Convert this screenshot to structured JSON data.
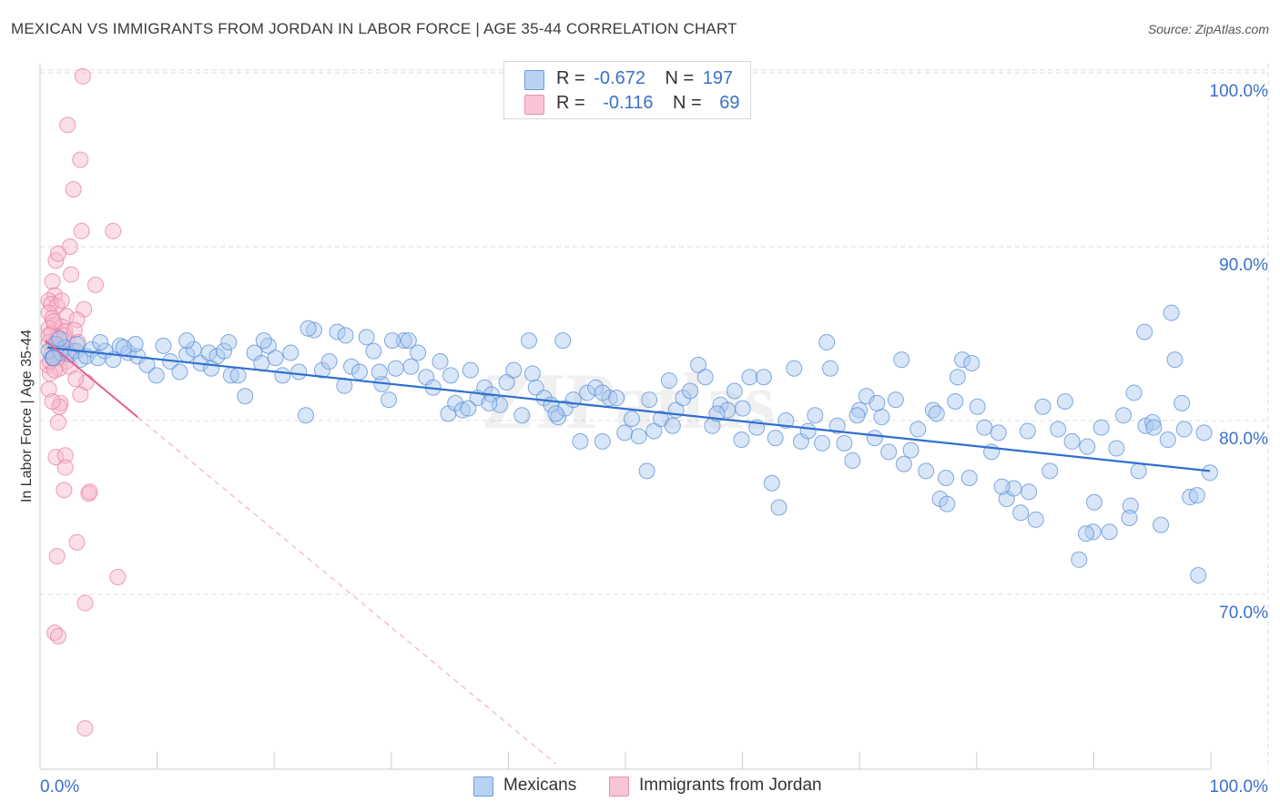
{
  "header": {
    "title": "MEXICAN VS IMMIGRANTS FROM JORDAN IN LABOR FORCE | AGE 35-44 CORRELATION CHART",
    "source": "Source: ZipAtlas.com"
  },
  "legend": {
    "rows": [
      {
        "r_label": "R =",
        "r_value": "-0.672",
        "n_label": "N =",
        "n_value": "197"
      },
      {
        "r_label": "R =",
        "r_value": "-0.116",
        "n_label": "N =",
        "n_value": "69"
      }
    ]
  },
  "watermark": "ZIPatlas",
  "colors": {
    "mexicans_fill": "#a9c8f0",
    "mexicans_stroke": "#5b8fd6",
    "mexicans_line": "#2f6fd0",
    "jordan_fill": "#f7b9cd",
    "jordan_stroke": "#e87fa2",
    "jordan_line": "#e2628f",
    "axis_label_blue": "#3b6fc9",
    "grid": "#dddddd"
  },
  "chart_data": {
    "type": "scatter",
    "title": "MEXICAN VS IMMIGRANTS FROM JORDAN IN LABOR FORCE | AGE 35-44 CORRELATION CHART",
    "xlabel": "",
    "ylabel": "In Labor Force | Age 35-44",
    "xlim": [
      0,
      100
    ],
    "ylim": [
      59,
      101.5
    ],
    "x_tick_labels": [
      "0.0%",
      "100.0%"
    ],
    "y_ticks": [
      70,
      80,
      90,
      100
    ],
    "y_tick_labels": [
      "70.0%",
      "80.0%",
      "90.0%",
      "100.0%"
    ],
    "grid": true,
    "legend_position": "bottom",
    "series": [
      {
        "name": "Mexicans",
        "color": "#a9c8f0",
        "trend": {
          "x": [
            0.5,
            100
          ],
          "y": [
            84.2,
            77.1
          ]
        },
        "points": [
          [
            0.6,
            84.0
          ],
          [
            0.9,
            83.6
          ],
          [
            1.2,
            84.4
          ],
          [
            1.6,
            83.9
          ],
          [
            2.0,
            84.2
          ],
          [
            2.4,
            83.8
          ],
          [
            2.9,
            84.0
          ],
          [
            3.3,
            83.5
          ],
          [
            3.8,
            83.7
          ],
          [
            4.3,
            84.1
          ],
          [
            4.8,
            83.6
          ],
          [
            5.4,
            84.0
          ],
          [
            6.1,
            83.5
          ],
          [
            6.7,
            84.3
          ],
          [
            7.4,
            83.9
          ],
          [
            8.2,
            83.7
          ],
          [
            9.0,
            83.2
          ],
          [
            9.8,
            82.6
          ],
          [
            10.4,
            84.3
          ],
          [
            11.0,
            83.4
          ],
          [
            11.8,
            82.8
          ],
          [
            12.4,
            83.8
          ],
          [
            13.0,
            84.1
          ],
          [
            13.6,
            83.3
          ],
          [
            14.3,
            83.9
          ],
          [
            15.0,
            83.7
          ],
          [
            15.6,
            84.0
          ],
          [
            16.2,
            82.6
          ],
          [
            16.8,
            82.6
          ],
          [
            17.4,
            81.4
          ],
          [
            18.2,
            83.9
          ],
          [
            18.8,
            83.3
          ],
          [
            19.4,
            84.3
          ],
          [
            20.0,
            83.6
          ],
          [
            20.6,
            82.6
          ],
          [
            21.3,
            83.9
          ],
          [
            22.0,
            82.8
          ],
          [
            22.6,
            80.3
          ],
          [
            23.3,
            85.2
          ],
          [
            24.0,
            82.9
          ],
          [
            24.6,
            83.4
          ],
          [
            25.3,
            85.1
          ],
          [
            25.9,
            82.0
          ],
          [
            26.5,
            83.1
          ],
          [
            27.2,
            82.8
          ],
          [
            27.8,
            84.8
          ],
          [
            28.4,
            84.0
          ],
          [
            29.1,
            82.1
          ],
          [
            29.7,
            81.2
          ],
          [
            30.3,
            83.0
          ],
          [
            31.0,
            84.6
          ],
          [
            31.6,
            83.1
          ],
          [
            32.2,
            83.9
          ],
          [
            32.9,
            82.5
          ],
          [
            33.5,
            81.9
          ],
          [
            34.1,
            83.4
          ],
          [
            34.8,
            80.4
          ],
          [
            35.4,
            81.0
          ],
          [
            36.0,
            80.6
          ],
          [
            36.7,
            82.9
          ],
          [
            37.3,
            81.3
          ],
          [
            37.9,
            81.9
          ],
          [
            38.5,
            81.5
          ],
          [
            39.2,
            80.9
          ],
          [
            39.8,
            82.2
          ],
          [
            40.4,
            82.9
          ],
          [
            41.1,
            80.3
          ],
          [
            41.7,
            84.6
          ],
          [
            42.3,
            81.9
          ],
          [
            43.0,
            81.3
          ],
          [
            43.6,
            80.9
          ],
          [
            44.2,
            80.2
          ],
          [
            44.8,
            80.7
          ],
          [
            45.5,
            81.2
          ],
          [
            46.1,
            78.8
          ],
          [
            46.7,
            81.6
          ],
          [
            47.4,
            81.9
          ],
          [
            48.0,
            78.8
          ],
          [
            48.6,
            81.3
          ],
          [
            49.2,
            81.3
          ],
          [
            49.9,
            79.3
          ],
          [
            50.5,
            80.1
          ],
          [
            51.1,
            79.1
          ],
          [
            51.8,
            77.1
          ],
          [
            52.4,
            79.4
          ],
          [
            53.0,
            80.1
          ],
          [
            53.7,
            82.3
          ],
          [
            54.3,
            80.6
          ],
          [
            54.9,
            81.3
          ],
          [
            55.5,
            81.7
          ],
          [
            56.2,
            83.2
          ],
          [
            56.8,
            82.5
          ],
          [
            57.4,
            79.7
          ],
          [
            58.1,
            80.9
          ],
          [
            58.7,
            80.6
          ],
          [
            59.3,
            81.7
          ],
          [
            59.9,
            78.9
          ],
          [
            60.6,
            82.5
          ],
          [
            61.2,
            79.6
          ],
          [
            61.8,
            82.5
          ],
          [
            62.5,
            76.4
          ],
          [
            63.1,
            75.0
          ],
          [
            63.7,
            80.0
          ],
          [
            64.4,
            83.0
          ],
          [
            65.0,
            78.8
          ],
          [
            65.6,
            79.4
          ],
          [
            66.2,
            80.3
          ],
          [
            66.8,
            78.7
          ],
          [
            67.5,
            83.0
          ],
          [
            68.1,
            79.7
          ],
          [
            68.7,
            78.7
          ],
          [
            69.4,
            77.7
          ],
          [
            70.0,
            80.6
          ],
          [
            70.6,
            81.4
          ],
          [
            71.3,
            79.0
          ],
          [
            71.9,
            80.2
          ],
          [
            72.5,
            78.2
          ],
          [
            73.1,
            81.2
          ],
          [
            73.8,
            77.5
          ],
          [
            74.4,
            78.3
          ],
          [
            75.0,
            79.5
          ],
          [
            75.7,
            77.1
          ],
          [
            76.3,
            80.6
          ],
          [
            76.9,
            75.5
          ],
          [
            77.5,
            75.2
          ],
          [
            78.2,
            81.1
          ],
          [
            78.8,
            83.5
          ],
          [
            79.4,
            76.7
          ],
          [
            80.1,
            80.8
          ],
          [
            80.7,
            79.6
          ],
          [
            81.3,
            78.2
          ],
          [
            81.9,
            79.3
          ],
          [
            82.6,
            75.5
          ],
          [
            83.2,
            76.1
          ],
          [
            83.8,
            74.7
          ],
          [
            84.5,
            75.9
          ],
          [
            85.1,
            74.3
          ],
          [
            85.7,
            80.8
          ],
          [
            86.3,
            77.1
          ],
          [
            87.0,
            79.5
          ],
          [
            87.6,
            81.1
          ],
          [
            88.2,
            78.8
          ],
          [
            88.8,
            72.0
          ],
          [
            89.5,
            78.5
          ],
          [
            90.1,
            75.3
          ],
          [
            90.7,
            79.6
          ],
          [
            91.4,
            73.6
          ],
          [
            92.0,
            78.4
          ],
          [
            92.6,
            80.3
          ],
          [
            93.2,
            75.1
          ],
          [
            93.9,
            77.1
          ],
          [
            94.5,
            79.7
          ],
          [
            95.1,
            79.9
          ],
          [
            95.8,
            74.0
          ],
          [
            96.4,
            78.9
          ],
          [
            97.0,
            83.5
          ],
          [
            97.6,
            81.0
          ],
          [
            98.3,
            75.6
          ],
          [
            98.9,
            75.7
          ],
          [
            99.5,
            79.3
          ],
          [
            100.0,
            77.0
          ],
          [
            73.6,
            83.5
          ],
          [
            31.4,
            84.6
          ],
          [
            44.6,
            84.6
          ],
          [
            44.0,
            80.4
          ],
          [
            76.6,
            80.4
          ],
          [
            84.4,
            79.4
          ],
          [
            77.4,
            76.7
          ],
          [
            90.0,
            73.6
          ],
          [
            93.5,
            81.6
          ],
          [
            95.2,
            79.6
          ],
          [
            97.8,
            79.5
          ],
          [
            99.0,
            71.1
          ],
          [
            96.7,
            86.2
          ],
          [
            94.4,
            85.1
          ],
          [
            93.1,
            74.4
          ],
          [
            89.4,
            73.5
          ],
          [
            82.2,
            76.2
          ],
          [
            79.6,
            83.3
          ],
          [
            71.5,
            81.0
          ],
          [
            67.2,
            84.5
          ],
          [
            60.0,
            80.7
          ],
          [
            54.0,
            79.7
          ],
          [
            52.0,
            81.2
          ],
          [
            48.0,
            81.6
          ],
          [
            42.0,
            82.7
          ],
          [
            38.3,
            81.0
          ],
          [
            35.0,
            82.6
          ],
          [
            30.0,
            84.6
          ],
          [
            26.0,
            84.9
          ],
          [
            22.8,
            85.3
          ],
          [
            19.0,
            84.6
          ],
          [
            16.0,
            84.5
          ],
          [
            12.4,
            84.6
          ],
          [
            8.0,
            84.4
          ],
          [
            5.0,
            84.5
          ],
          [
            3.0,
            84.4
          ],
          [
            1.5,
            84.7
          ],
          [
            1.0,
            83.6
          ],
          [
            7.0,
            84.2
          ],
          [
            14.5,
            83.0
          ],
          [
            28.9,
            82.8
          ],
          [
            36.5,
            80.7
          ],
          [
            57.8,
            80.4
          ],
          [
            62.8,
            79.0
          ],
          [
            69.8,
            80.3
          ],
          [
            78.4,
            82.5
          ]
        ]
      },
      {
        "name": "Immigrants from Jordan",
        "color": "#f7b9cd",
        "trend": {
          "x": [
            0.3,
            8.2
          ],
          "y": [
            84.6,
            80.2
          ]
        },
        "points": [
          [
            3.5,
            99.8
          ],
          [
            2.2,
            97.0
          ],
          [
            3.3,
            95.0
          ],
          [
            2.7,
            93.3
          ],
          [
            3.4,
            90.9
          ],
          [
            6.1,
            90.9
          ],
          [
            2.4,
            90.0
          ],
          [
            1.2,
            89.2
          ],
          [
            1.4,
            89.6
          ],
          [
            2.5,
            88.4
          ],
          [
            0.9,
            88.0
          ],
          [
            4.6,
            87.8
          ],
          [
            1.1,
            87.2
          ],
          [
            0.6,
            86.9
          ],
          [
            0.8,
            86.7
          ],
          [
            1.3,
            86.6
          ],
          [
            3.6,
            86.4
          ],
          [
            0.6,
            86.2
          ],
          [
            0.9,
            85.9
          ],
          [
            2.1,
            86.0
          ],
          [
            3.0,
            85.8
          ],
          [
            1.1,
            85.5
          ],
          [
            0.6,
            85.3
          ],
          [
            1.7,
            85.4
          ],
          [
            2.0,
            85.1
          ],
          [
            0.8,
            85.0
          ],
          [
            1.4,
            84.8
          ],
          [
            2.2,
            84.6
          ],
          [
            0.6,
            84.5
          ],
          [
            1.0,
            84.4
          ],
          [
            1.8,
            84.2
          ],
          [
            2.6,
            84.0
          ],
          [
            0.8,
            83.8
          ],
          [
            1.3,
            83.6
          ],
          [
            2.1,
            83.4
          ],
          [
            0.5,
            83.2
          ],
          [
            1.5,
            83.0
          ],
          [
            0.7,
            82.7
          ],
          [
            3.8,
            82.2
          ],
          [
            0.6,
            81.8
          ],
          [
            3.3,
            81.5
          ],
          [
            1.6,
            81.0
          ],
          [
            1.5,
            80.8
          ],
          [
            1.4,
            79.9
          ],
          [
            1.2,
            77.9
          ],
          [
            2.0,
            78.0
          ],
          [
            2.0,
            77.3
          ],
          [
            1.9,
            76.0
          ],
          [
            4.0,
            75.8
          ],
          [
            4.1,
            75.9
          ],
          [
            3.0,
            73.0
          ],
          [
            1.3,
            72.2
          ],
          [
            6.5,
            71.0
          ],
          [
            3.7,
            69.5
          ],
          [
            1.1,
            67.8
          ],
          [
            1.4,
            67.6
          ],
          [
            3.7,
            62.3
          ],
          [
            1.0,
            85.7
          ],
          [
            1.9,
            84.9
          ],
          [
            2.8,
            85.2
          ],
          [
            0.7,
            83.4
          ],
          [
            1.6,
            84.1
          ],
          [
            2.4,
            83.1
          ],
          [
            0.9,
            81.1
          ],
          [
            1.1,
            82.9
          ],
          [
            3.1,
            84.5
          ],
          [
            1.7,
            86.9
          ],
          [
            0.6,
            84.9
          ],
          [
            2.9,
            82.4
          ]
        ]
      }
    ]
  },
  "bottom_legend": {
    "items": [
      {
        "label": "Mexicans"
      },
      {
        "label": "Immigrants from Jordan"
      }
    ]
  }
}
